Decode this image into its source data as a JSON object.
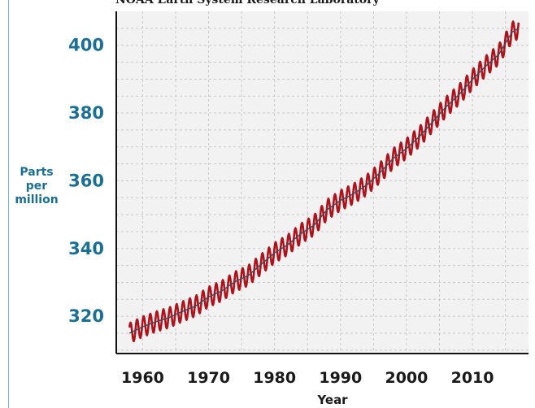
{
  "chart_data": {
    "type": "line",
    "title": "NOAA Earth System Research Laboratory",
    "xlabel": "Year",
    "ylabel_lines": [
      "Parts",
      "per",
      "million"
    ],
    "xlim": [
      1956,
      2018.5
    ],
    "ylim": [
      309,
      410
    ],
    "x_ticks": [
      1960,
      1970,
      1980,
      1990,
      2000,
      2010
    ],
    "y_ticks": [
      320,
      340,
      360,
      380,
      400
    ],
    "grid": true,
    "seasonal_amplitude": 3,
    "series": [
      {
        "kind": "seasonal",
        "x": [
          1958,
          1960,
          1962,
          1964,
          1966,
          1968,
          1970,
          1972,
          1974,
          1976,
          1978,
          1980,
          1982,
          1984,
          1986,
          1988,
          1990,
          1992,
          1994,
          1996,
          1998,
          2000,
          2002,
          2004,
          2006,
          2008,
          2010,
          2012,
          2014,
          2016,
          2017
        ],
        "y": [
          315,
          316.9,
          318.4,
          319.6,
          321.4,
          323,
          325.7,
          327.5,
          330.2,
          332,
          335.4,
          338.7,
          341.1,
          344.4,
          346.9,
          351.5,
          354.2,
          356.2,
          358.8,
          362.4,
          366.6,
          369.5,
          373.1,
          377.5,
          381.8,
          385.5,
          389.9,
          393.8,
          397.3,
          403.8,
          405
        ]
      },
      {
        "kind": "trend",
        "x": [
          1958,
          1960,
          1962,
          1964,
          1966,
          1968,
          1970,
          1972,
          1974,
          1976,
          1978,
          1980,
          1982,
          1984,
          1986,
          1988,
          1990,
          1992,
          1994,
          1996,
          1998,
          2000,
          2002,
          2004,
          2006,
          2008,
          2010,
          2012,
          2014,
          2016,
          2017
        ],
        "y": [
          315,
          316.9,
          318.4,
          319.6,
          321.4,
          323,
          325.7,
          327.5,
          330.2,
          332,
          335.4,
          338.7,
          341.1,
          344.4,
          346.9,
          351.5,
          354.2,
          356.2,
          358.8,
          362.4,
          366.6,
          369.5,
          373.1,
          377.5,
          381.8,
          385.5,
          389.9,
          393.8,
          397.3,
          403.8,
          405
        ]
      }
    ]
  },
  "colors": {
    "seasonal": "#b0121b",
    "trend": "#3d4a5c",
    "grid": "#c9c9c9",
    "plot_bg": "#f2f2f2",
    "axis": "#111111",
    "ytick": "#1b6f94",
    "frame": "#7fb3c9"
  }
}
